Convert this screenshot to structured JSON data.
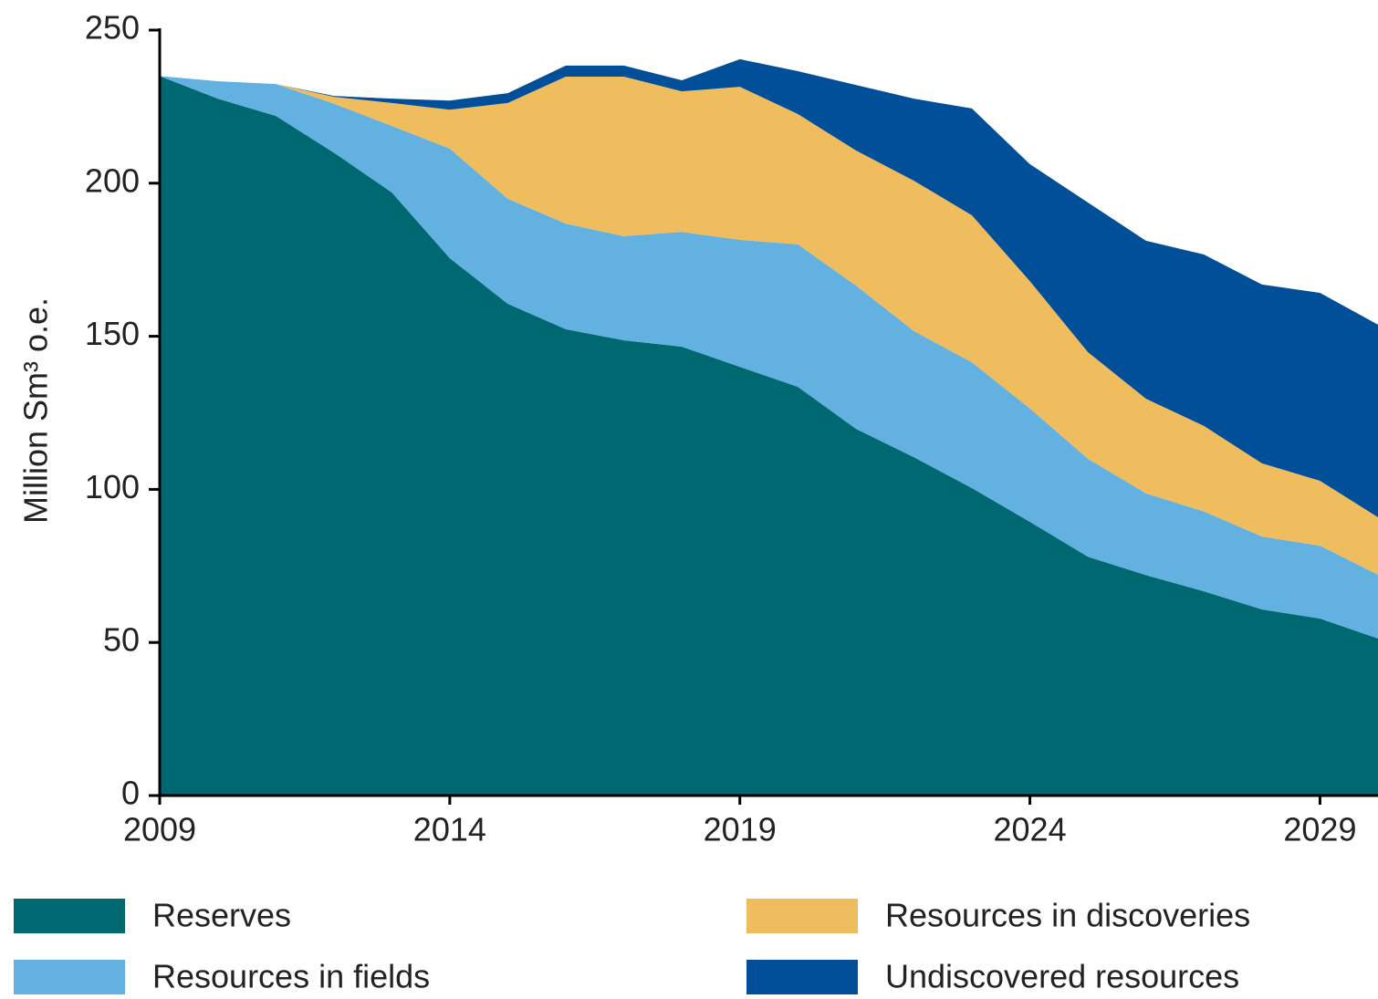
{
  "chart_data": {
    "type": "stacked_area",
    "y_label": "Million Sm³ o.e.",
    "x": [
      2009,
      2010,
      2011,
      2012,
      2013,
      2014,
      2015,
      2016,
      2017,
      2018,
      2019,
      2020,
      2021,
      2022,
      2023,
      2024,
      2025,
      2026,
      2027,
      2028,
      2029,
      2030
    ],
    "xlim": [
      2009,
      2030
    ],
    "xticks": [
      2009,
      2014,
      2019,
      2024,
      2029
    ],
    "ylim": [
      0,
      250
    ],
    "yticks": [
      0,
      50,
      100,
      150,
      200,
      250
    ],
    "series": [
      {
        "name": "Reserves",
        "color": "#006870",
        "values": [
          235,
          227.6,
          222,
          210,
          197,
          175.5,
          160.6,
          152.3,
          148.7,
          146.6,
          140,
          133.5,
          119.8,
          110.5,
          100.4,
          89.4,
          78,
          72,
          66.7,
          60.8,
          57.8,
          51.3
        ]
      },
      {
        "name": "Resources in fields",
        "color": "#62b1e0",
        "values": [
          0,
          5.7,
          10.4,
          16,
          21.7,
          35.8,
          34.3,
          34.5,
          34,
          37.5,
          41.5,
          46.5,
          46.8,
          41.2,
          41.1,
          37,
          32,
          26.7,
          26.1,
          23.8,
          23.8,
          20.8
        ]
      },
      {
        "name": "Resources in discoveries",
        "color": "#efbd5e",
        "values": [
          0,
          0,
          0,
          2.2,
          7.5,
          12.7,
          31.3,
          48,
          52.1,
          45.9,
          50,
          42.6,
          44.1,
          49.1,
          48,
          41.6,
          34.8,
          30.9,
          27.9,
          23.9,
          21.2,
          18.8
        ]
      },
      {
        "name": "Undiscovered resources",
        "color": "#004f98",
        "values": [
          0,
          0,
          0,
          0.3,
          1.4,
          3,
          3.2,
          3.6,
          3.6,
          3.6,
          9,
          14,
          21.4,
          26.8,
          34.9,
          38.2,
          48.9,
          51.6,
          56,
          58.4,
          61.4,
          62.9
        ]
      }
    ]
  }
}
